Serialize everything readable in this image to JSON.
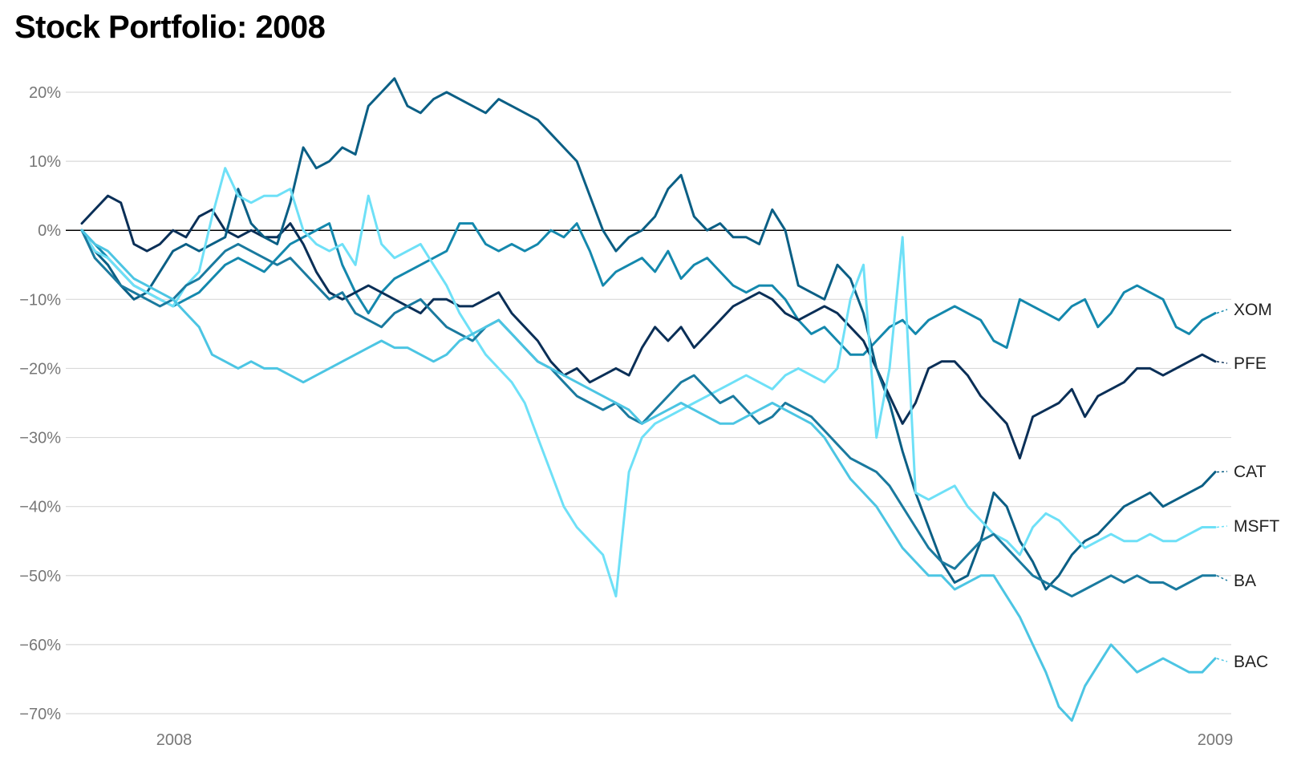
{
  "chart_data": {
    "type": "line",
    "title": "Stock Portfolio: 2008",
    "xlabel": "",
    "ylabel": "",
    "x_ticks": [
      "2008",
      "2009"
    ],
    "y_ticks": [
      "20%",
      "10%",
      "0%",
      "−10%",
      "−20%",
      "−30%",
      "−40%",
      "−50%",
      "−60%",
      "−70%"
    ],
    "y_tick_values": [
      20,
      10,
      0,
      -10,
      -20,
      -30,
      -40,
      -50,
      -60,
      -70
    ],
    "ylim": [
      -70,
      20
    ],
    "grid": true,
    "legend": "end-labels",
    "series": [
      {
        "name": "XOM",
        "color": "#1488ad",
        "values": [
          0,
          -2,
          -4,
          -6,
          -8,
          -9,
          -10,
          -11,
          -10,
          -9,
          -7,
          -5,
          -4,
          -5,
          -6,
          -4,
          -2,
          -1,
          0,
          1,
          -5,
          -9,
          -12,
          -9,
          -7,
          -6,
          -5,
          -4,
          -3,
          1,
          1,
          -2,
          -3,
          -2,
          -3,
          -2,
          0,
          -1,
          1,
          -3,
          -8,
          -6,
          -5,
          -4,
          -6,
          -3,
          -7,
          -5,
          -4,
          -6,
          -8,
          -9,
          -8,
          -8,
          -10,
          -13,
          -15,
          -14,
          -16,
          -18,
          -18,
          -16,
          -14,
          -13,
          -15,
          -13,
          -12,
          -11,
          -12,
          -13,
          -16,
          -17,
          -10,
          -11,
          -12,
          -13,
          -11,
          -10,
          -14,
          -12,
          -9,
          -8,
          -9,
          -10,
          -14,
          -15,
          -13,
          -12
        ]
      },
      {
        "name": "PFE",
        "color": "#0a2f57",
        "values": [
          1,
          3,
          5,
          4,
          -2,
          -3,
          -2,
          0,
          -1,
          2,
          3,
          0,
          -1,
          0,
          -1,
          -1,
          1,
          -2,
          -6,
          -9,
          -10,
          -9,
          -8,
          -9,
          -10,
          -11,
          -12,
          -10,
          -10,
          -11,
          -11,
          -10,
          -9,
          -12,
          -14,
          -16,
          -19,
          -21,
          -20,
          -22,
          -21,
          -20,
          -21,
          -17,
          -14,
          -16,
          -14,
          -17,
          -15,
          -13,
          -11,
          -10,
          -9,
          -10,
          -12,
          -13,
          -12,
          -11,
          -12,
          -14,
          -16,
          -20,
          -24,
          -28,
          -25,
          -20,
          -19,
          -19,
          -21,
          -24,
          -26,
          -28,
          -33,
          -27,
          -26,
          -25,
          -23,
          -27,
          -24,
          -23,
          -22,
          -20,
          -20,
          -21,
          -20,
          -19,
          -18,
          -19
        ]
      },
      {
        "name": "CAT",
        "color": "#0b5f85",
        "values": [
          0,
          -3,
          -5,
          -8,
          -10,
          -9,
          -6,
          -3,
          -2,
          -3,
          -2,
          -1,
          6,
          1,
          -1,
          -2,
          4,
          12,
          9,
          10,
          12,
          11,
          18,
          20,
          22,
          18,
          17,
          19,
          20,
          19,
          18,
          17,
          19,
          18,
          17,
          16,
          14,
          12,
          10,
          5,
          0,
          -3,
          -1,
          0,
          2,
          6,
          8,
          2,
          0,
          1,
          -1,
          -1,
          -2,
          3,
          0,
          -8,
          -9,
          -10,
          -5,
          -7,
          -12,
          -20,
          -25,
          -32,
          -38,
          -43,
          -48,
          -51,
          -50,
          -45,
          -38,
          -40,
          -45,
          -48,
          -52,
          -50,
          -47,
          -45,
          -44,
          -42,
          -40,
          -39,
          -38,
          -40,
          -39,
          -38,
          -37,
          -35
        ]
      },
      {
        "name": "MSFT",
        "color": "#6ee0f7",
        "values": [
          0,
          -3,
          -4,
          -6,
          -8,
          -9,
          -10,
          -11,
          -8,
          -6,
          2,
          9,
          5,
          4,
          5,
          5,
          6,
          0,
          -2,
          -3,
          -2,
          -5,
          5,
          -2,
          -4,
          -3,
          -2,
          -5,
          -8,
          -12,
          -15,
          -18,
          -20,
          -22,
          -25,
          -30,
          -35,
          -40,
          -43,
          -45,
          -47,
          -53,
          -35,
          -30,
          -28,
          -27,
          -26,
          -25,
          -24,
          -23,
          -22,
          -21,
          -22,
          -23,
          -21,
          -20,
          -21,
          -22,
          -20,
          -10,
          -5,
          -30,
          -20,
          -1,
          -38,
          -39,
          -38,
          -37,
          -40,
          -42,
          -44,
          -45,
          -47,
          -43,
          -41,
          -42,
          -44,
          -46,
          -45,
          -44,
          -45,
          -45,
          -44,
          -45,
          -45,
          -44,
          -43,
          -43
        ]
      },
      {
        "name": "BA",
        "color": "#1a7a9f",
        "values": [
          0,
          -4,
          -6,
          -8,
          -9,
          -10,
          -11,
          -10,
          -8,
          -7,
          -5,
          -3,
          -2,
          -3,
          -4,
          -5,
          -4,
          -6,
          -8,
          -10,
          -9,
          -12,
          -13,
          -14,
          -12,
          -11,
          -10,
          -12,
          -14,
          -15,
          -16,
          -14,
          -13,
          -15,
          -17,
          -19,
          -20,
          -22,
          -24,
          -25,
          -26,
          -25,
          -27,
          -28,
          -26,
          -24,
          -22,
          -21,
          -23,
          -25,
          -24,
          -26,
          -28,
          -27,
          -25,
          -26,
          -27,
          -29,
          -31,
          -33,
          -34,
          -35,
          -37,
          -40,
          -43,
          -46,
          -48,
          -49,
          -47,
          -45,
          -44,
          -46,
          -48,
          -50,
          -51,
          -52,
          -53,
          -52,
          -51,
          -50,
          -51,
          -50,
          -51,
          -51,
          -52,
          -51,
          -50,
          -50
        ]
      },
      {
        "name": "BAC",
        "color": "#4cc5e3",
        "values": [
          0,
          -2,
          -3,
          -5,
          -7,
          -8,
          -9,
          -10,
          -12,
          -14,
          -18,
          -19,
          -20,
          -19,
          -20,
          -20,
          -21,
          -22,
          -21,
          -20,
          -19,
          -18,
          -17,
          -16,
          -17,
          -17,
          -18,
          -19,
          -18,
          -16,
          -15,
          -14,
          -13,
          -15,
          -17,
          -19,
          -20,
          -21,
          -22,
          -23,
          -24,
          -25,
          -26,
          -28,
          -27,
          -26,
          -25,
          -26,
          -27,
          -28,
          -28,
          -27,
          -26,
          -25,
          -26,
          -27,
          -28,
          -30,
          -33,
          -36,
          -38,
          -40,
          -43,
          -46,
          -48,
          -50,
          -50,
          -52,
          -51,
          -50,
          -50,
          -53,
          -56,
          -60,
          -64,
          -69,
          -71,
          -66,
          -63,
          -60,
          -62,
          -64,
          -63,
          -62,
          -63,
          -64,
          -64,
          -62
        ]
      }
    ]
  }
}
